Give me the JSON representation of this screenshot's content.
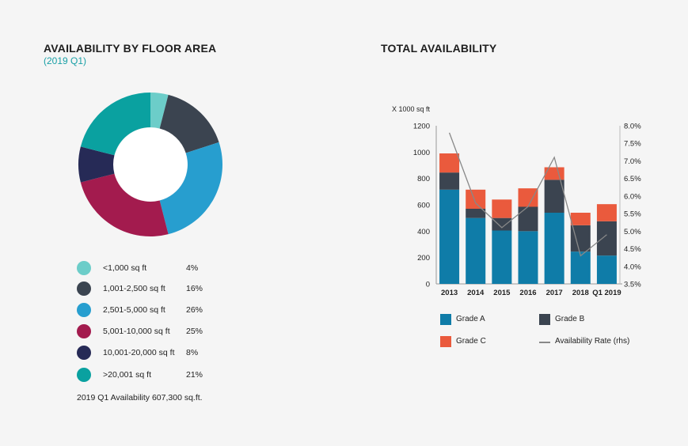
{
  "left": {
    "title": "AVAILABILITY BY FLOOR AREA",
    "subtitle": "(2019 Q1)",
    "footnote": "2019 Q1 Availability 607,300 sq.ft."
  },
  "right": {
    "title": "TOTAL AVAILABILITY",
    "ylabel": "X 1000 sq ft"
  },
  "chart_data": [
    {
      "type": "pie",
      "variant": "donut",
      "title": "AVAILABILITY BY FLOOR AREA",
      "subtitle": "(2019 Q1)",
      "slices": [
        {
          "label": "<1,000 sq ft",
          "pct_label": "4%",
          "value": 4,
          "color": "#6ccdc9"
        },
        {
          "label": "1,001-2,500 sq ft",
          "pct_label": "16%",
          "value": 16,
          "color": "#3b4450"
        },
        {
          "label": "2,501-5,000 sq ft",
          "pct_label": "26%",
          "value": 26,
          "color": "#279ecf"
        },
        {
          "label": "5,001-10,000 sq ft",
          "pct_label": "25%",
          "value": 25,
          "color": "#a31b4e"
        },
        {
          "label": "10,001-20,000 sq ft",
          "pct_label": "8%",
          "value": 8,
          "color": "#262a56"
        },
        {
          "label": ">20,001 sq ft",
          "pct_label": "21%",
          "value": 21,
          "color": "#0aa1a0"
        }
      ]
    },
    {
      "type": "bar",
      "stacked": true,
      "title": "TOTAL AVAILABILITY",
      "ylabel": "X 1000 sq ft",
      "categories": [
        "2013",
        "2014",
        "2015",
        "2016",
        "2017",
        "2018",
        "Q1 2019"
      ],
      "ylim": [
        0,
        1200
      ],
      "yticks": [
        "0",
        "200",
        "400",
        "600",
        "800",
        "1000",
        "1200"
      ],
      "series": [
        {
          "name": "Grade A",
          "color": "#0f7ca8",
          "values": [
            715,
            500,
            405,
            400,
            540,
            245,
            215
          ]
        },
        {
          "name": "Grade B",
          "color": "#3b4450",
          "values": [
            130,
            70,
            95,
            185,
            250,
            200,
            260
          ]
        },
        {
          "name": "Grade C",
          "color": "#ea5a3d",
          "values": [
            145,
            145,
            140,
            140,
            95,
            95,
            130
          ]
        }
      ],
      "line": {
        "name": "Availability Rate (rhs)",
        "color": "#888888",
        "values": [
          7.8,
          5.8,
          5.1,
          5.7,
          7.1,
          4.3,
          4.9
        ],
        "y2lim": [
          3.5,
          8.0
        ],
        "y2ticks": [
          "3.5%",
          "4.0%",
          "4.5%",
          "5.0%",
          "5.5%",
          "6.0%",
          "6.5%",
          "7.0%",
          "7.5%",
          "8.0%"
        ]
      }
    }
  ]
}
